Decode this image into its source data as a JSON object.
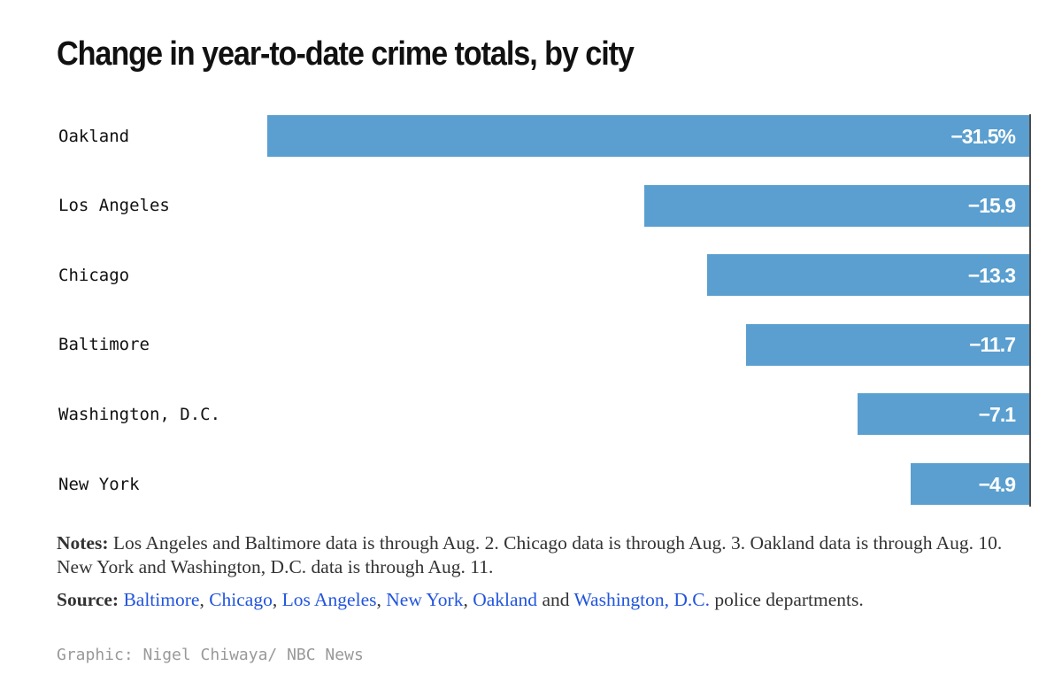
{
  "title": "Change in year-to-date crime totals, by city",
  "chart_data": {
    "type": "bar",
    "orientation": "horizontal",
    "title": "Change in year-to-date crime totals, by city",
    "categories": [
      "Oakland",
      "Los Angeles",
      "Chicago",
      "Baltimore",
      "Washington, D.C.",
      "New York"
    ],
    "values": [
      -31.5,
      -15.9,
      -13.3,
      -11.7,
      -7.1,
      -4.9
    ],
    "value_labels": [
      "−31.5%",
      "−15.9",
      "−13.3",
      "−11.7",
      "−7.1",
      "−4.9"
    ],
    "unit": "%",
    "xlim": [
      -31.5,
      0
    ],
    "xlabel": "",
    "ylabel": "",
    "grid": false,
    "bar_color": "#5a9fcf",
    "axis_color": "#4d4d4d"
  },
  "notes": {
    "label": "Notes:",
    "text": " Los Angeles and Baltimore data is through Aug. 2. Chicago data is through Aug. 3. Oakland data is through Aug. 10. New York and Washington, D.C. data is through Aug. 11."
  },
  "source": {
    "label": "Source:",
    "links": [
      "Baltimore",
      "Chicago",
      "Los Angeles",
      "New York",
      "Oakland",
      "Washington, D.C."
    ],
    "separators": [
      ", ",
      ", ",
      ", ",
      ", ",
      " and "
    ],
    "suffix": " police departments.",
    "link_color": "#2255dd"
  },
  "credit": "Graphic: Nigel Chiwaya/ NBC News"
}
